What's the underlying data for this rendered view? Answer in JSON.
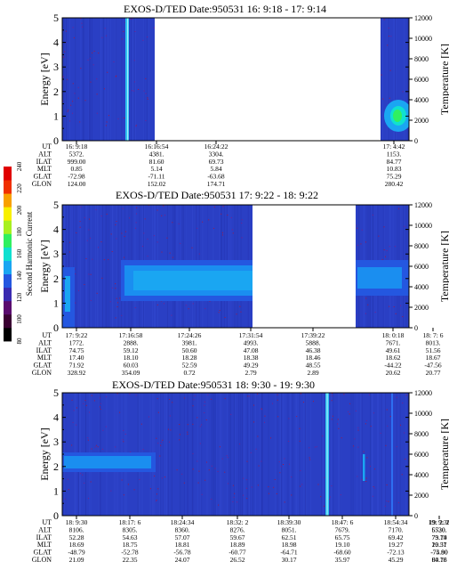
{
  "colorbar": {
    "label": "Second Harmonic Current",
    "ticks": [
      "240",
      "220",
      "200",
      "180",
      "160",
      "140",
      "120",
      "100",
      "80"
    ],
    "colors": [
      "#000000",
      "#3a0032",
      "#5a0a6e",
      "#3a2ab0",
      "#2457e0",
      "#1aa6f2",
      "#10e0d0",
      "#30f060",
      "#a8f020",
      "#f8f000",
      "#f8a000",
      "#f03000",
      "#e00000"
    ]
  },
  "panels": [
    {
      "title": "EXOS-D/TED   Date:950531  16: 9:18 - 17: 9:14",
      "ylabel": "Energy [eV]",
      "y2label": "Temperature [K]",
      "yticks": [
        "0",
        "1",
        "2",
        "3",
        "4",
        "5"
      ],
      "y2ticks": [
        "0",
        "2000",
        "4000",
        "6000",
        "8000",
        "10000",
        "12000"
      ],
      "rowlabels": [
        "UT",
        "ALT",
        "ILAT",
        "MLT",
        "GLAT",
        "GLON"
      ],
      "columns": [
        {
          "ut": "16: 9:18",
          "alt": "5372.",
          "ilat": "999.00",
          "mlt": "0.85",
          "glat": "-72.98",
          "glon": "124.00"
        },
        {
          "ut": "16:16:54",
          "alt": "4381.",
          "ilat": "81.60",
          "mlt": "5.14",
          "glat": "-71.11",
          "glon": "152.02"
        },
        {
          "ut": "16:24:22",
          "alt": "3304.",
          "ilat": "69.73",
          "mlt": "5.84",
          "glat": "-63.68",
          "glon": "174.71"
        },
        {
          "ut": "17: 4:42",
          "alt": "1153.",
          "ilat": "84.77",
          "mlt": "10.83",
          "glat": "75.29",
          "glon": "280.42"
        }
      ]
    },
    {
      "title": "EXOS-D/TED   Date:950531  17: 9:22 - 18: 9:22",
      "ylabel": "Energy [eV]",
      "y2label": "Temperature [K]",
      "yticks": [
        "0",
        "1",
        "2",
        "3",
        "4",
        "5"
      ],
      "y2ticks": [
        "0",
        "2000",
        "4000",
        "6000",
        "8000",
        "10000",
        "12000"
      ],
      "rowlabels": [
        "UT",
        "ALT",
        "ILAT",
        "MLT",
        "GLAT",
        "GLON"
      ],
      "columns": [
        {
          "ut": "17: 9:22",
          "alt": "1772.",
          "ilat": "74.75",
          "mlt": "17.40",
          "glat": "71.92",
          "glon": "328.92"
        },
        {
          "ut": "17:16:58",
          "alt": "2888.",
          "ilat": "59.12",
          "mlt": "18.10",
          "glat": "60.03",
          "glon": "354.09"
        },
        {
          "ut": "17:24:26",
          "alt": "3981.",
          "ilat": "50.60",
          "mlt": "18.28",
          "glat": "52.59",
          "glon": "0.72"
        },
        {
          "ut": "17:31:54",
          "alt": "4993.",
          "ilat": "47.08",
          "mlt": "18.38",
          "glat": "49.29",
          "glon": "2.79"
        },
        {
          "ut": "17:39:22",
          "alt": "5888.",
          "ilat": "46.38",
          "mlt": "18.46",
          "glat": "48.55",
          "glon": "2.89"
        },
        {
          "ut": "18: 0:18",
          "alt": "7671.",
          "ilat": "49.61",
          "mlt": "18.62",
          "glat": "-44.22",
          "glon": "20.62"
        },
        {
          "ut": "18: 7: 6",
          "alt": "8013.",
          "ilat": "51.56",
          "mlt": "18.67",
          "glat": "-47.56",
          "glon": "20.77"
        }
      ]
    },
    {
      "title": "EXOS-D/TED   Date:950531  18: 9:30 - 19: 9:30",
      "ylabel": "Energy [eV]",
      "y2label": "Temperature [K]",
      "yticks": [
        "0",
        "1",
        "2",
        "3",
        "4",
        "5"
      ],
      "y2ticks": [
        "0",
        "2000",
        "4000",
        "6000",
        "8000",
        "10000",
        "12000"
      ],
      "rowlabels": [
        "UT",
        "ALT",
        "ILAT",
        "MLT",
        "GLAT",
        "GLON"
      ],
      "columns": [
        {
          "ut": "18: 9:30",
          "alt": "8106.",
          "ilat": "52.28",
          "mlt": "18.69",
          "glat": "-48.79",
          "glon": "21.09"
        },
        {
          "ut": "18:17: 6",
          "alt": "8305.",
          "ilat": "54.63",
          "mlt": "18.75",
          "glat": "-52.78",
          "glon": "22.35"
        },
        {
          "ut": "18:24:34",
          "alt": "8360.",
          "ilat": "57.07",
          "mlt": "18.81",
          "glat": "-56.78",
          "glon": "24.07"
        },
        {
          "ut": "18:32: 2",
          "alt": "8276.",
          "ilat": "59.67",
          "mlt": "18.89",
          "glat": "-60.77",
          "glon": "26.52"
        },
        {
          "ut": "18:39:30",
          "alt": "8051.",
          "ilat": "62.51",
          "mlt": "18.98",
          "glat": "-64.71",
          "glon": "30.17"
        },
        {
          "ut": "18:47: 6",
          "alt": "7679.",
          "ilat": "65.75",
          "mlt": "19.10",
          "glat": "-68.60",
          "glon": "35.97"
        },
        {
          "ut": "18:54:34",
          "alt": "7170.",
          "ilat": "69.42",
          "mlt": "19.27",
          "glat": "-72.13",
          "glon": "45.29"
        },
        {
          "ut": "19: 2: 2",
          "alt": "6520.",
          "ilat": "73.79",
          "mlt": "19.57",
          "glat": "-74.90",
          "glon": "60.78"
        },
        {
          "ut": "19: 9:30",
          "alt": "5730.",
          "ilat": "79.14",
          "mlt": "20.31",
          "glat": "-75.80",
          "glon": "84.16"
        }
      ]
    }
  ]
}
